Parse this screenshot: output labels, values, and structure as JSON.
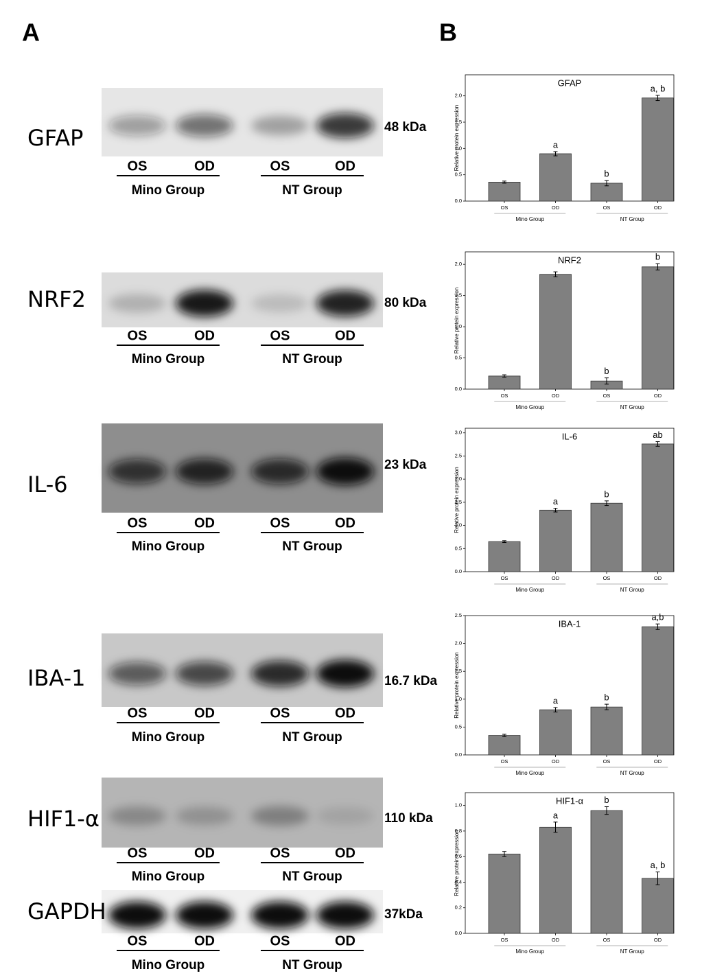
{
  "panel_a": {
    "label": "A",
    "rows": [
      {
        "protein": "GFAP",
        "size": "48 kDa",
        "lanes": [
          "OS",
          "OD",
          "OS",
          "OD"
        ],
        "groups": [
          "Mino Group",
          "NT Group"
        ]
      },
      {
        "protein": "NRF2",
        "size": "80 kDa",
        "lanes": [
          "OS",
          "OD",
          "OS",
          "OD"
        ],
        "groups": [
          "Mino Group",
          "NT Group"
        ]
      },
      {
        "protein": "IL-6",
        "size": "23 kDa",
        "lanes": [
          "OS",
          "OD",
          "OS",
          "OD"
        ],
        "groups": [
          "Mino Group",
          "NT Group"
        ]
      },
      {
        "protein": "IBA-1",
        "size": "16.7 kDa",
        "lanes": [
          "OS",
          "OD",
          "OS",
          "OD"
        ],
        "groups": [
          "Mino Group",
          "NT Group"
        ]
      },
      {
        "protein": "HIF1-α",
        "size": "110 kDa",
        "lanes": [
          "OS",
          "OD",
          "OS",
          "OD"
        ],
        "groups": [
          "Mino Group",
          "NT Group"
        ]
      },
      {
        "protein": "GAPDH",
        "size": "37kDa",
        "lanes": [
          "OS",
          "OD",
          "OS",
          "OD"
        ],
        "groups": [
          "Mino Group",
          "NT Group"
        ]
      }
    ]
  },
  "panel_b": {
    "label": "B"
  },
  "chart_data": [
    {
      "type": "bar",
      "title": "GFAP",
      "ylabel": "Relative protein expression",
      "categories": [
        "OS",
        "OD",
        "OS",
        "OD"
      ],
      "groups": [
        "Mino Group",
        "NT Group"
      ],
      "values": [
        0.36,
        0.9,
        0.34,
        1.96
      ],
      "errors": [
        0.02,
        0.04,
        0.05,
        0.05
      ],
      "annotations": [
        null,
        "a",
        "b",
        "a, b"
      ],
      "color": "#808080",
      "ylim": [
        0,
        2.4
      ],
      "yticks": [
        {
          "value": 0,
          "label": "0.0"
        },
        0.5,
        {
          "value": 1,
          "label": "1.0"
        },
        1.5,
        {
          "value": 2,
          "label": "2.0"
        }
      ]
    },
    {
      "type": "bar",
      "title": "NRF2",
      "ylabel": "Relative protein expression",
      "categories": [
        "OS",
        "OD",
        "OS",
        "OD"
      ],
      "groups": [
        "Mino Group",
        "NT Group"
      ],
      "values": [
        0.21,
        1.84,
        0.13,
        1.96
      ],
      "errors": [
        0.02,
        0.04,
        0.05,
        0.05
      ],
      "annotations": [
        null,
        null,
        "b",
        "b"
      ],
      "color": "#808080",
      "ylim": [
        0,
        2.2
      ],
      "yticks": [
        {
          "value": 0,
          "label": "0.0"
        },
        0.5,
        {
          "value": 1,
          "label": "1.0"
        },
        1.5,
        {
          "value": 2,
          "label": "2.0"
        }
      ]
    },
    {
      "type": "bar",
      "title": "IL-6",
      "ylabel": "Relative protein expression",
      "categories": [
        "OS",
        "OD",
        "OS",
        "OD"
      ],
      "groups": [
        "Mino Group",
        "NT Group"
      ],
      "values": [
        0.65,
        1.33,
        1.48,
        2.76
      ],
      "errors": [
        0.02,
        0.04,
        0.05,
        0.05
      ],
      "annotations": [
        null,
        "a",
        "b",
        "ab"
      ],
      "color": "#808080",
      "ylim": [
        0,
        3.1
      ],
      "yticks": [
        {
          "value": 0,
          "label": "0.0"
        },
        0.5,
        {
          "value": 1,
          "label": "1.0"
        },
        1.5,
        {
          "value": 2,
          "label": "2.0"
        },
        2.5,
        {
          "value": 3,
          "label": "3.0"
        }
      ]
    },
    {
      "type": "bar",
      "title": "IBA-1",
      "ylabel": "Relative protein expression",
      "categories": [
        "OS",
        "OD",
        "OS",
        "OD"
      ],
      "groups": [
        "Mino Group",
        "NT Group"
      ],
      "values": [
        0.35,
        0.81,
        0.86,
        2.3
      ],
      "errors": [
        0.02,
        0.04,
        0.05,
        0.05
      ],
      "annotations": [
        null,
        "a",
        "b",
        "a,b"
      ],
      "color": "#808080",
      "ylim": [
        0,
        2.5
      ],
      "yticks": [
        {
          "value": 0,
          "label": "0.0"
        },
        0.5,
        {
          "value": 1,
          "label": "1.0"
        },
        1.5,
        {
          "value": 2,
          "label": "2.0"
        },
        2.5
      ]
    },
    {
      "type": "bar",
      "title": "HIF1-α",
      "ylabel": "Relative protein expression",
      "categories": [
        "OS",
        "OD",
        "OS",
        "OD"
      ],
      "groups": [
        "Mino Group",
        "NT Group"
      ],
      "values": [
        0.62,
        0.83,
        0.96,
        0.43
      ],
      "errors": [
        0.02,
        0.04,
        0.03,
        0.05
      ],
      "annotations": [
        null,
        "a",
        "b",
        "a, b"
      ],
      "color": "#808080",
      "ylim": [
        0,
        1.1
      ],
      "yticks": [
        {
          "value": 0,
          "label": "0.0"
        },
        0.2,
        0.4,
        0.6,
        0.8,
        {
          "value": 1,
          "label": "1.0"
        }
      ]
    }
  ]
}
